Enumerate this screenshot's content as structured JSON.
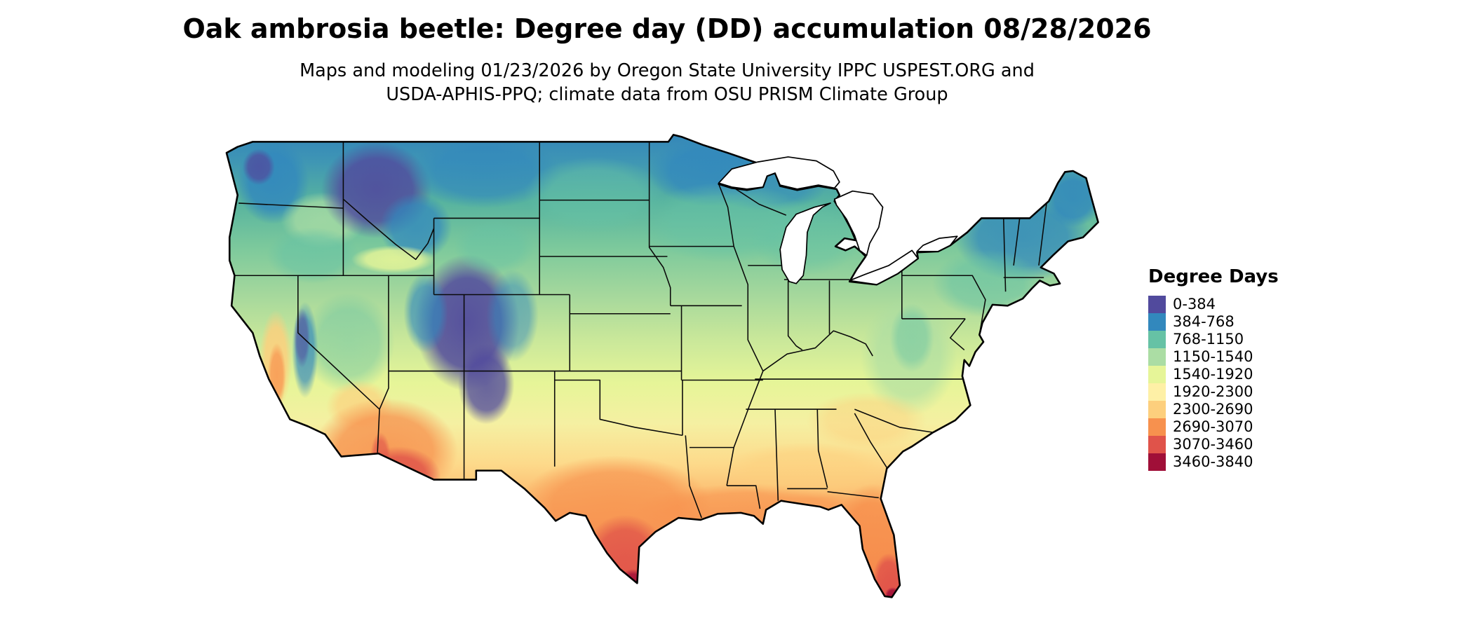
{
  "title": "Oak ambrosia beetle: Degree day (DD) accumulation 08/28/2026",
  "subtitle_line1": "Maps and modeling 01/23/2026 by Oregon State University IPPC USPEST.ORG and",
  "subtitle_line2": "USDA-APHIS-PPQ; climate data from OSU PRISM Climate Group",
  "map": {
    "region": "Conterminous United States",
    "kind": "degree-day accumulation raster map with state boundaries"
  },
  "legend": {
    "title": "Degree Days",
    "classes": [
      {
        "label": "0-384",
        "color": "#514a9d"
      },
      {
        "label": "384-768",
        "color": "#3288bd"
      },
      {
        "label": "768-1150",
        "color": "#66c2a5"
      },
      {
        "label": "1150-1540",
        "color": "#abdda4"
      },
      {
        "label": "1540-1920",
        "color": "#e6f598"
      },
      {
        "label": "1920-2300",
        "color": "#fef0a6"
      },
      {
        "label": "2300-2690",
        "color": "#fdcf7d"
      },
      {
        "label": "2690-3070",
        "color": "#f7914e"
      },
      {
        "label": "3070-3460",
        "color": "#e0534a"
      },
      {
        "label": "3460-3840",
        "color": "#a00f38"
      }
    ]
  }
}
